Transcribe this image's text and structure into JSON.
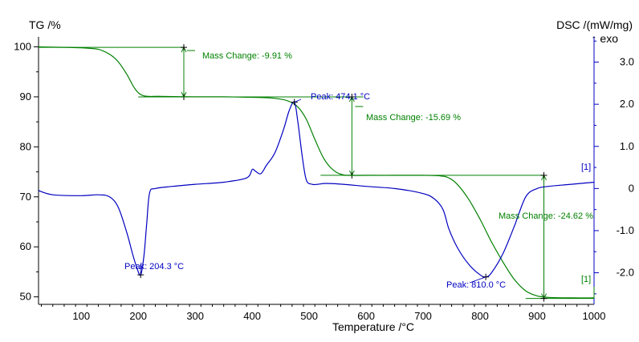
{
  "chart_data": {
    "type": "line",
    "title": "",
    "xlabel": "Temperature /°C",
    "ylabel_left": "TG /%",
    "ylabel_right": "DSC /(mW/mg)",
    "ylabel_right_sub": "↑ exo",
    "xlim": [
      25,
      1000
    ],
    "ylim_left": [
      48.5,
      102
    ],
    "ylim_right": [
      -2.75,
      3.6
    ],
    "x_ticks": [
      100,
      200,
      300,
      400,
      500,
      600,
      700,
      800,
      900,
      1000
    ],
    "y_left_ticks": [
      100,
      90,
      80,
      70,
      60,
      50
    ],
    "y_right_ticks": [
      3.0,
      2.0,
      1.0,
      0,
      -1.0,
      -2.0
    ],
    "y_right_tick_labels": [
      "3.0",
      "2.0",
      "1.0",
      "0",
      "-1.0",
      "-2.0"
    ],
    "colors": {
      "tg": "#008000",
      "dsc": "#0000c0",
      "axis": "#000000",
      "right_axis": "#0000c0"
    },
    "series": [
      {
        "axis": "left",
        "x": [
          25,
          100,
          130,
          150,
          165,
          180,
          195,
          210,
          240,
          300,
          350,
          400,
          430,
          460,
          480,
          495,
          510,
          525,
          540,
          560,
          600,
          650,
          700,
          730,
          745,
          760,
          780,
          800,
          820,
          840,
          860,
          880,
          900,
          920,
          960,
          1000
        ],
        "y": [
          100.0,
          99.8,
          99.5,
          98.5,
          97.0,
          94.5,
          91.5,
          90.2,
          90.1,
          90.0,
          90.0,
          89.9,
          89.8,
          89.3,
          88.0,
          85.5,
          81.5,
          77.8,
          75.6,
          74.4,
          74.3,
          74.3,
          74.3,
          74.2,
          73.8,
          72.5,
          69.5,
          65.5,
          61.0,
          57.0,
          53.5,
          51.2,
          50.2,
          49.9,
          49.8,
          49.8
        ]
      },
      {
        "axis": "right",
        "x": [
          25,
          50,
          100,
          130,
          150,
          165,
          180,
          190,
          198,
          204.3,
          210,
          215,
          220,
          230,
          260,
          300,
          350,
          390,
          400,
          405,
          415,
          425,
          440,
          455,
          465,
          474.1,
          480,
          488,
          495,
          505,
          515,
          530,
          560,
          600,
          650,
          700,
          720,
          735,
          745,
          760,
          780,
          800,
          810,
          820,
          840,
          860,
          880,
          900,
          920,
          960,
          1000
        ],
        "y": [
          -0.05,
          -0.15,
          -0.17,
          -0.15,
          -0.2,
          -0.45,
          -1.05,
          -1.55,
          -1.9,
          -2.05,
          -1.6,
          -0.8,
          -0.1,
          0.0,
          0.05,
          0.1,
          0.15,
          0.25,
          0.45,
          0.42,
          0.35,
          0.55,
          0.85,
          1.4,
          1.85,
          2.05,
          1.6,
          0.75,
          0.2,
          0.1,
          0.1,
          0.12,
          0.1,
          0.05,
          0.0,
          -0.12,
          -0.25,
          -0.5,
          -0.95,
          -1.4,
          -1.8,
          -2.05,
          -2.1,
          -2.0,
          -1.55,
          -0.9,
          -0.2,
          0.0,
          0.05,
          0.1,
          0.15
        ]
      }
    ],
    "annotations": [
      {
        "text": "Mass Change: -9.91 %",
        "color": "green"
      },
      {
        "text": "Mass Change: -15.69 %",
        "color": "green"
      },
      {
        "text": "Mass Change: -24.62 %",
        "color": "green"
      },
      {
        "text": "Peak: 474.1 °C",
        "color": "blue"
      },
      {
        "text": "Peak: 204.3 °C",
        "color": "blue"
      },
      {
        "text": "Peak: 810.0 °C",
        "color": "blue"
      },
      {
        "text": "[1]",
        "color": "blue"
      },
      {
        "text": "[1]",
        "color": "green"
      }
    ],
    "mass_steps": [
      {
        "x": 280,
        "from": 99.9,
        "to": 89.99
      },
      {
        "x": 575,
        "from": 89.99,
        "to": 74.3
      },
      {
        "x": 912,
        "from": 74.3,
        "to": 49.68
      }
    ],
    "peaks": [
      {
        "x": 474.1,
        "y": 2.05
      },
      {
        "x": 204.3,
        "y": -2.05
      },
      {
        "x": 810.0,
        "y": -2.1
      }
    ],
    "grid": false,
    "legend": "none"
  }
}
